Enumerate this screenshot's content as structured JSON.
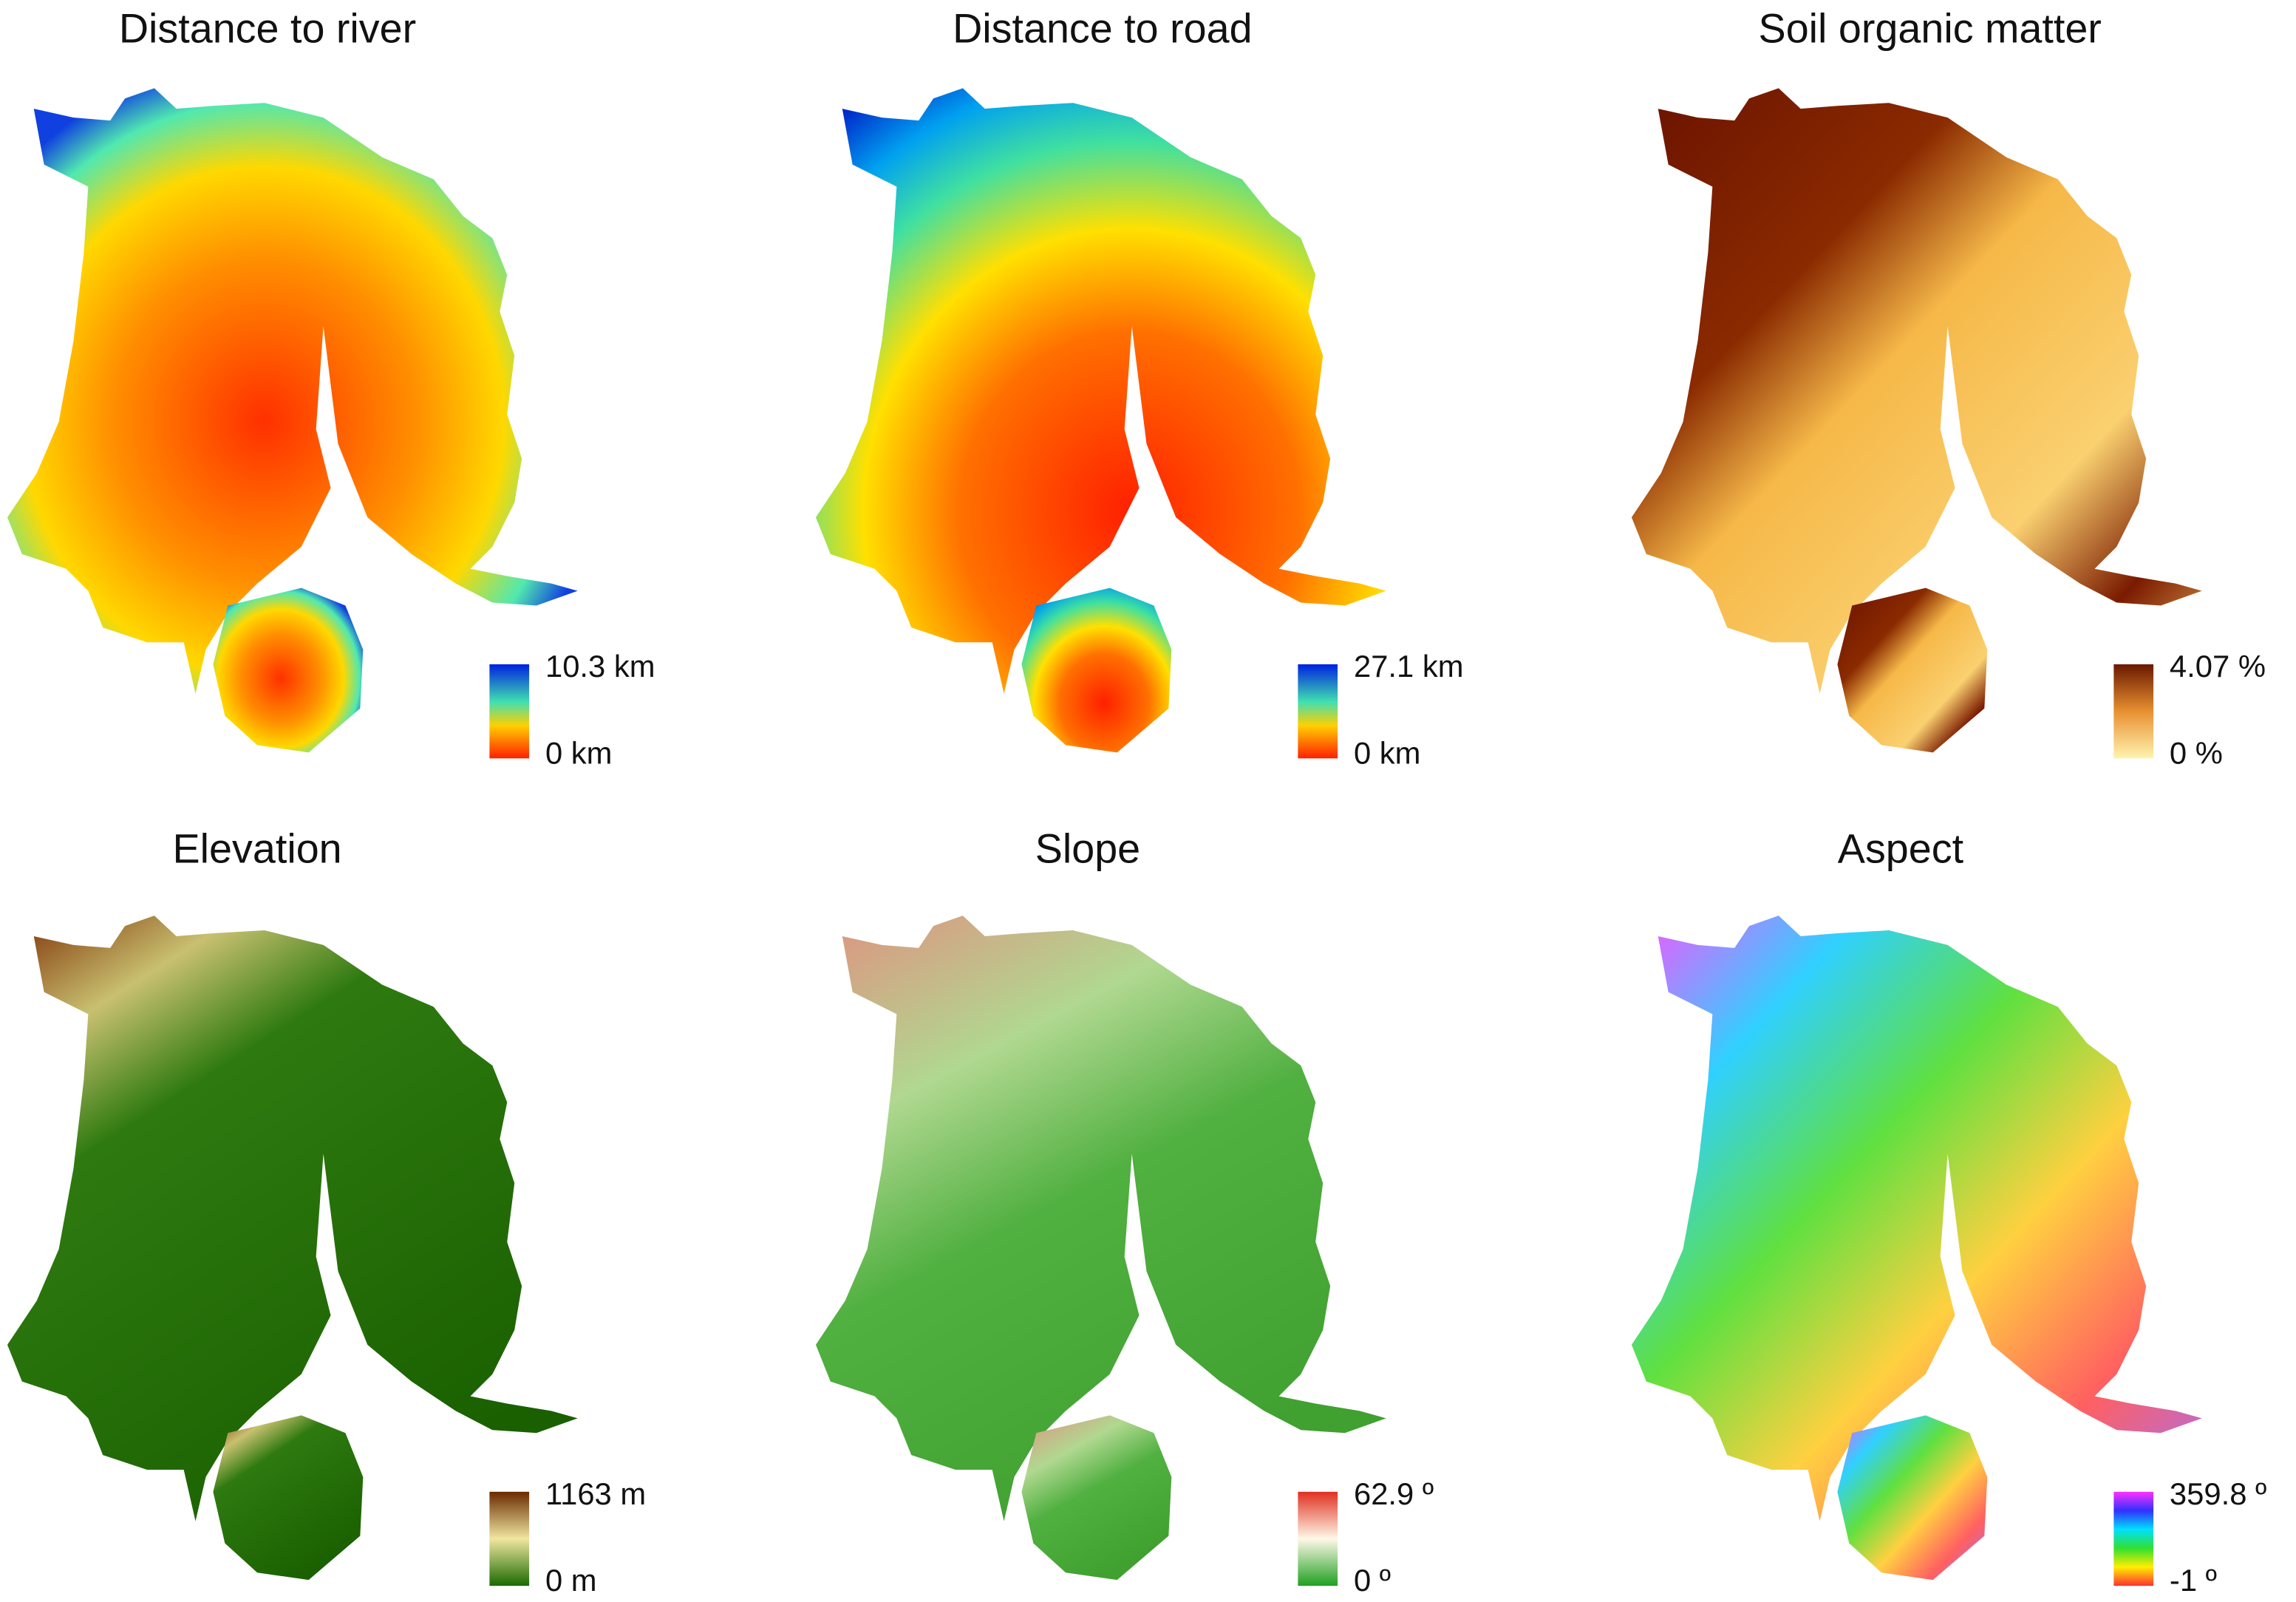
{
  "panels": [
    {
      "title": "Distance to river",
      "legend_max": "10.3 km",
      "legend_min": "0 km"
    },
    {
      "title": "Distance to road",
      "legend_max": "27.1 km",
      "legend_min": "0 km"
    },
    {
      "title": "Soil organic matter",
      "legend_max": "4.07 %",
      "legend_min": "0 %"
    },
    {
      "title": "Elevation",
      "legend_max": "1163 m",
      "legend_min": "0 m"
    },
    {
      "title": "Slope",
      "legend_max": "62.9 º",
      "legend_min": "0 º"
    },
    {
      "title": "Aspect",
      "legend_max": "359.8 º",
      "legend_min": "-1 º"
    }
  ]
}
